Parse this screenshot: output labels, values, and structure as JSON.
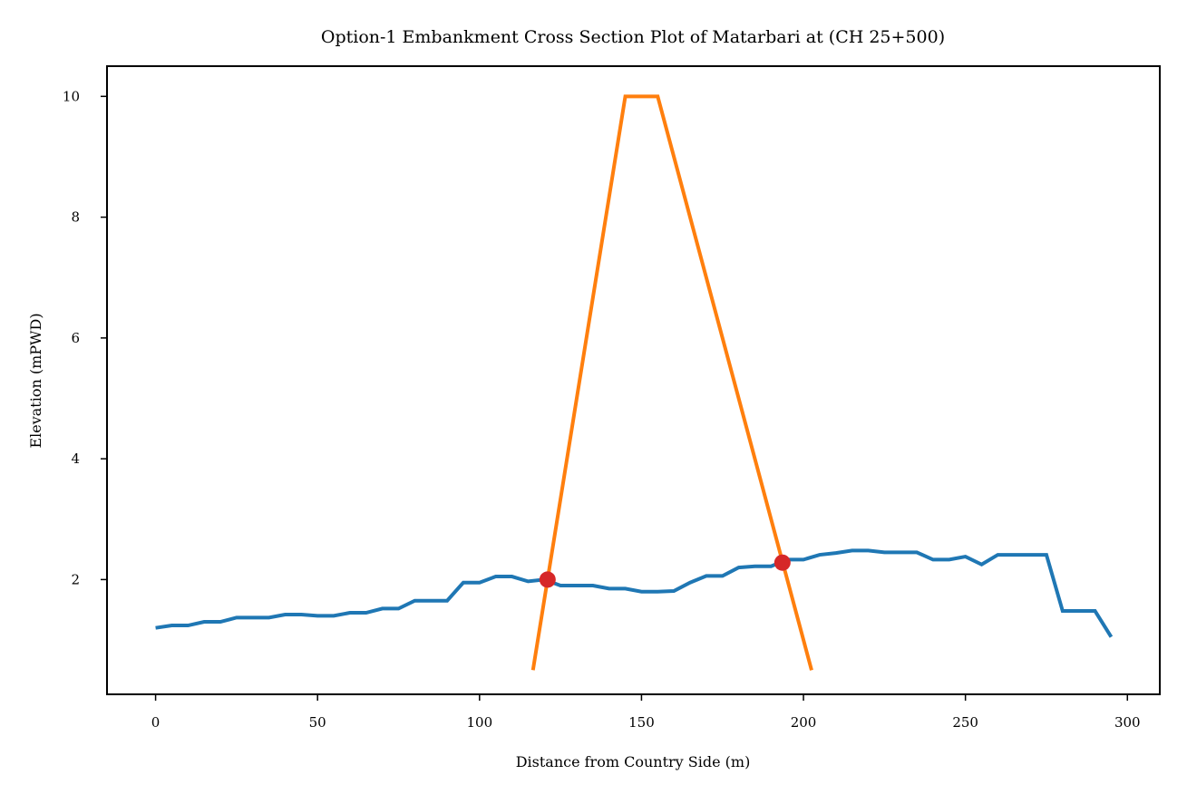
{
  "chart_data": {
    "type": "line",
    "title": "Option-1 Embankment Cross Section Plot of Matarbari at (CH 25+500)",
    "xlabel": "Distance from Country Side (m)",
    "ylabel": "Elevation (mPWD)",
    "xlim": [
      -15,
      310
    ],
    "ylim": [
      0.1,
      10.5
    ],
    "xticks": [
      0,
      50,
      100,
      150,
      200,
      250,
      300
    ],
    "yticks": [
      2,
      4,
      6,
      8,
      10
    ],
    "grid": false,
    "series": [
      {
        "color": "#1f77b4",
        "x": [
          0,
          5,
          10,
          15,
          20,
          25,
          30,
          35,
          40,
          45,
          50,
          55,
          60,
          65,
          70,
          75,
          80,
          85,
          90,
          95,
          100,
          105,
          110,
          115,
          120,
          125,
          130,
          135,
          140,
          145,
          150,
          155,
          160,
          165,
          170,
          175,
          180,
          185,
          190,
          195,
          200,
          205,
          210,
          215,
          220,
          225,
          230,
          235,
          240,
          245,
          250,
          255,
          260,
          265,
          270,
          275,
          280,
          285,
          290,
          295
        ],
        "y": [
          1.2,
          1.24,
          1.24,
          1.3,
          1.3,
          1.37,
          1.37,
          1.37,
          1.42,
          1.42,
          1.4,
          1.4,
          1.45,
          1.45,
          1.52,
          1.52,
          1.65,
          1.65,
          1.65,
          1.95,
          1.95,
          2.05,
          2.05,
          1.97,
          2.0,
          1.9,
          1.9,
          1.9,
          1.85,
          1.85,
          1.8,
          1.8,
          1.81,
          1.95,
          2.06,
          2.06,
          2.2,
          2.22,
          2.22,
          2.33,
          2.33,
          2.41,
          2.44,
          2.48,
          2.48,
          2.45,
          2.45,
          2.45,
          2.33,
          2.33,
          2.38,
          2.25,
          2.41,
          2.41,
          2.41,
          2.41,
          1.48,
          1.48,
          1.48,
          1.05
        ]
      },
      {
        "color": "#ff7f0e",
        "x": [
          116.5,
          145,
          155,
          202.5
        ],
        "y": [
          0.5,
          10.0,
          10.0,
          0.5
        ]
      }
    ],
    "markers": {
      "color": "#d62728",
      "points": [
        {
          "x": 121,
          "y": 2.0
        },
        {
          "x": 193.5,
          "y": 2.28
        }
      ]
    }
  }
}
